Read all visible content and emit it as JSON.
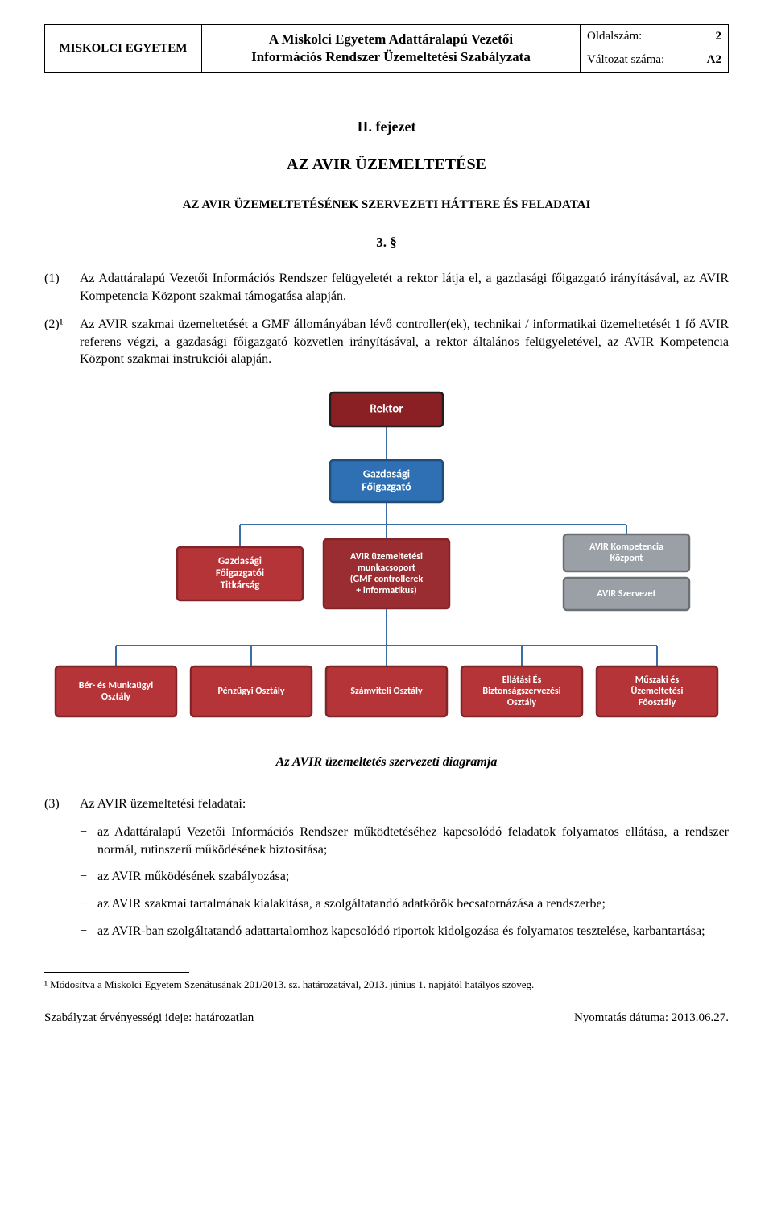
{
  "header": {
    "org": "MISKOLCI  EGYETEM",
    "title_l1": "A Miskolci Egyetem Adattáralapú Vezetői",
    "title_l2": "Információs Rendszer Üzemeltetési Szabályzata",
    "page_key": "Oldalszám:",
    "page_val": "2",
    "version_key": "Változat száma:",
    "version_val": "A2"
  },
  "headings": {
    "chapter": "II. fejezet",
    "title": "AZ AVIR ÜZEMELTETÉSE",
    "subtitle": "AZ AVIR ÜZEMELTETÉSÉNEK SZERVEZETI HÁTTERE ÉS FELADATAI",
    "section_num": "3. §"
  },
  "paragraphs": {
    "p1_num": "(1)",
    "p1": "Az Adattáralapú Vezetői Információs Rendszer felügyeletét a rektor látja el, a gazdasági főigazgató irányításával, az AVIR Kompetencia Központ szakmai támogatása alapján.",
    "p2_num": "(2)¹",
    "p2": "Az AVIR szakmai üzemeltetését a GMF állományában lévő controller(ek), technikai / informatikai üzemeltetését 1 fő AVIR referens végzi, a gazdasági főigazgató közvetlen irányításával, a rektor általános felügyeletével, az AVIR Kompetencia Központ szakmai instrukciói alapján."
  },
  "org": {
    "caption": "Az AVIR üzemeltetés szervezeti diagramja",
    "colors": {
      "rektor_fill": "#8a1f24",
      "rektor_edge": "#1f1f1f",
      "gf_fill": "#2f6fb3",
      "gf_edge": "#204d7a",
      "red_fill": "#b53438",
      "red_fill_dark": "#9a2d31",
      "red_edge": "#802528",
      "grey_fill": "#9aa0a6",
      "grey_edge": "#6b7075",
      "line": "#3a6ea5",
      "text": "#ffffff"
    },
    "nodes": {
      "rektor": "Rektor",
      "gf": [
        "Gazdasági",
        "Főigazgató"
      ],
      "titk": [
        "Gazdasági",
        "Főigazgatói",
        "Titkárság"
      ],
      "munkacs": [
        "AVIR üzemeltetési",
        "munkacsoport",
        "(GMF controllerek",
        "+ informatikus)"
      ],
      "komp": [
        "AVIR Kompetencia",
        "Központ"
      ],
      "szerv": "AVIR Szervezet",
      "ber": [
        "Bér- és Munkaügyi",
        "Osztály"
      ],
      "penz": "Pénzügyi Osztály",
      "szam": "Számviteli Osztály",
      "ell": [
        "Ellátási És",
        "Biztonságszervezési",
        "Osztály"
      ],
      "musz": [
        "Műszaki és",
        "Üzemeltetési",
        "Főosztály"
      ]
    }
  },
  "list": {
    "intro_num": "(3)",
    "intro": "Az AVIR üzemeltetési feladatai:",
    "items": [
      "az Adattáralapú Vezetői Információs Rendszer működtetéséhez kapcsolódó feladatok folyamatos ellátása, a rendszer normál, rutinszerű működésének biztosítása;",
      "az AVIR működésének szabályozása;",
      "az AVIR szakmai tartalmának kialakítása, a szolgáltatandó adatkörök becsatornázása a rendszerbe;",
      "az AVIR-ban szolgáltatandó adattartalomhoz kapcsolódó riportok kidolgozása és folyamatos tesztelése, karbantartása;"
    ]
  },
  "footnote": "¹ Módosítva a Miskolci Egyetem Szenátusának 201/2013. sz. határozatával, 2013. június 1. napjától hatályos szöveg.",
  "footer": {
    "left": "Szabályzat érvényességi ideje: határozatlan",
    "right": "Nyomtatás dátuma: 2013.06.27."
  }
}
